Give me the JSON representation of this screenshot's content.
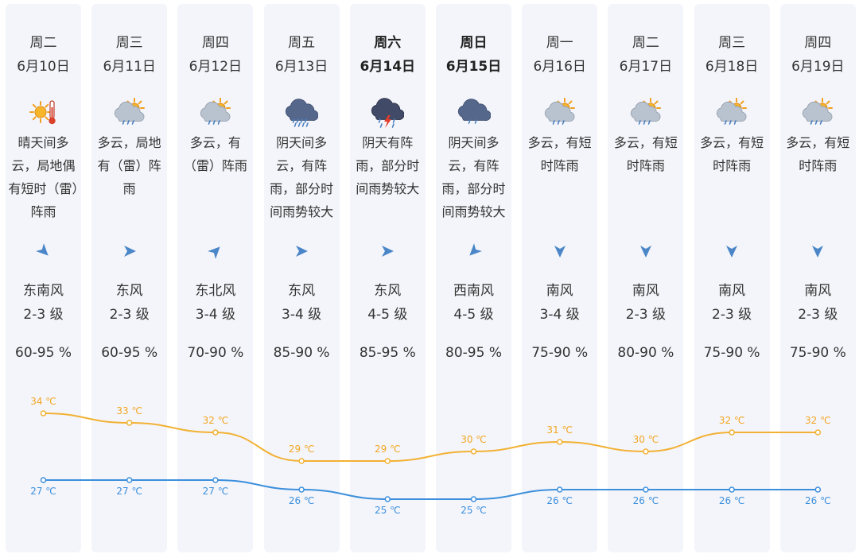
{
  "days": [
    {
      "day": "周二",
      "date": "6月10日",
      "icon": "sun-thunder-icon",
      "desc": "晴天间多云，局地偶有短时（雷）阵雨",
      "arrow_deg": 135,
      "wind_dir": "东南风",
      "wind_level": "2-3 级",
      "humidity": "60-95 %",
      "hi": 34,
      "lo": 27,
      "hi_label": "34 ℃",
      "lo_label": "27 ℃",
      "bold": false
    },
    {
      "day": "周三",
      "date": "6月11日",
      "icon": "partly-cloudy-rain-icon",
      "desc": "多云，局地有（雷）阵雨",
      "arrow_deg": 90,
      "wind_dir": "东风",
      "wind_level": "2-3 级",
      "humidity": "60-95 %",
      "hi": 33,
      "lo": 27,
      "hi_label": "33 ℃",
      "lo_label": "27 ℃",
      "bold": false
    },
    {
      "day": "周四",
      "date": "6月12日",
      "icon": "partly-cloudy-rain-icon",
      "desc": "多云，有（雷）阵雨",
      "arrow_deg": 45,
      "wind_dir": "东北风",
      "wind_level": "3-4 级",
      "humidity": "70-90 %",
      "hi": 32,
      "lo": 27,
      "hi_label": "32 ℃",
      "lo_label": "27 ℃",
      "bold": false
    },
    {
      "day": "周五",
      "date": "6月13日",
      "icon": "cloudy-heavy-rain-icon",
      "desc": "阴天间多云，有阵雨，部分时间雨势较大",
      "arrow_deg": 90,
      "wind_dir": "东风",
      "wind_level": "3-4 级",
      "humidity": "85-90 %",
      "hi": 29,
      "lo": 26,
      "hi_label": "29 ℃",
      "lo_label": "26 ℃",
      "bold": false
    },
    {
      "day": "周六",
      "date": "6月14日",
      "icon": "thunderstorm-icon",
      "desc": "阴天有阵雨，部分时间雨势较大",
      "arrow_deg": 90,
      "wind_dir": "东风",
      "wind_level": "4-5 级",
      "humidity": "85-95 %",
      "hi": 29,
      "lo": 25,
      "hi_label": "29 ℃",
      "lo_label": "25 ℃",
      "bold": true
    },
    {
      "day": "周日",
      "date": "6月15日",
      "icon": "cloudy-rain-icon",
      "desc": "阴天间多云，有阵雨，部分时间雨势较大",
      "arrow_deg": 225,
      "wind_dir": "西南风",
      "wind_level": "4-5 级",
      "humidity": "80-95 %",
      "hi": 30,
      "lo": 25,
      "hi_label": "30 ℃",
      "lo_label": "25 ℃",
      "bold": true
    },
    {
      "day": "周一",
      "date": "6月16日",
      "icon": "partly-cloudy-rain-icon",
      "desc": "多云，有短时阵雨",
      "arrow_deg": 180,
      "wind_dir": "南风",
      "wind_level": "3-4 级",
      "humidity": "75-90 %",
      "hi": 31,
      "lo": 26,
      "hi_label": "31 ℃",
      "lo_label": "26 ℃",
      "bold": false
    },
    {
      "day": "周二",
      "date": "6月17日",
      "icon": "partly-cloudy-rain-icon",
      "desc": "多云，有短时阵雨",
      "arrow_deg": 180,
      "wind_dir": "南风",
      "wind_level": "2-3 级",
      "humidity": "80-90 %",
      "hi": 30,
      "lo": 26,
      "hi_label": "30 ℃",
      "lo_label": "26 ℃",
      "bold": false
    },
    {
      "day": "周三",
      "date": "6月18日",
      "icon": "partly-cloudy-rain-icon",
      "desc": "多云，有短时阵雨",
      "arrow_deg": 180,
      "wind_dir": "南风",
      "wind_level": "2-3 级",
      "humidity": "75-90 %",
      "hi": 32,
      "lo": 26,
      "hi_label": "32 ℃",
      "lo_label": "26 ℃",
      "bold": false
    },
    {
      "day": "周四",
      "date": "6月19日",
      "icon": "partly-cloudy-rain-icon",
      "desc": "多云，有短时阵雨",
      "arrow_deg": 180,
      "wind_dir": "南风",
      "wind_level": "2-3 级",
      "humidity": "75-90 %",
      "hi": 32,
      "lo": 26,
      "hi_label": "32 ℃",
      "lo_label": "26 ℃",
      "bold": false
    }
  ],
  "colors": {
    "high_line": "#f2b134",
    "low_line": "#3c8fdc",
    "arrow": "#4a86c8",
    "card_bg": "#f4f5fa"
  }
}
